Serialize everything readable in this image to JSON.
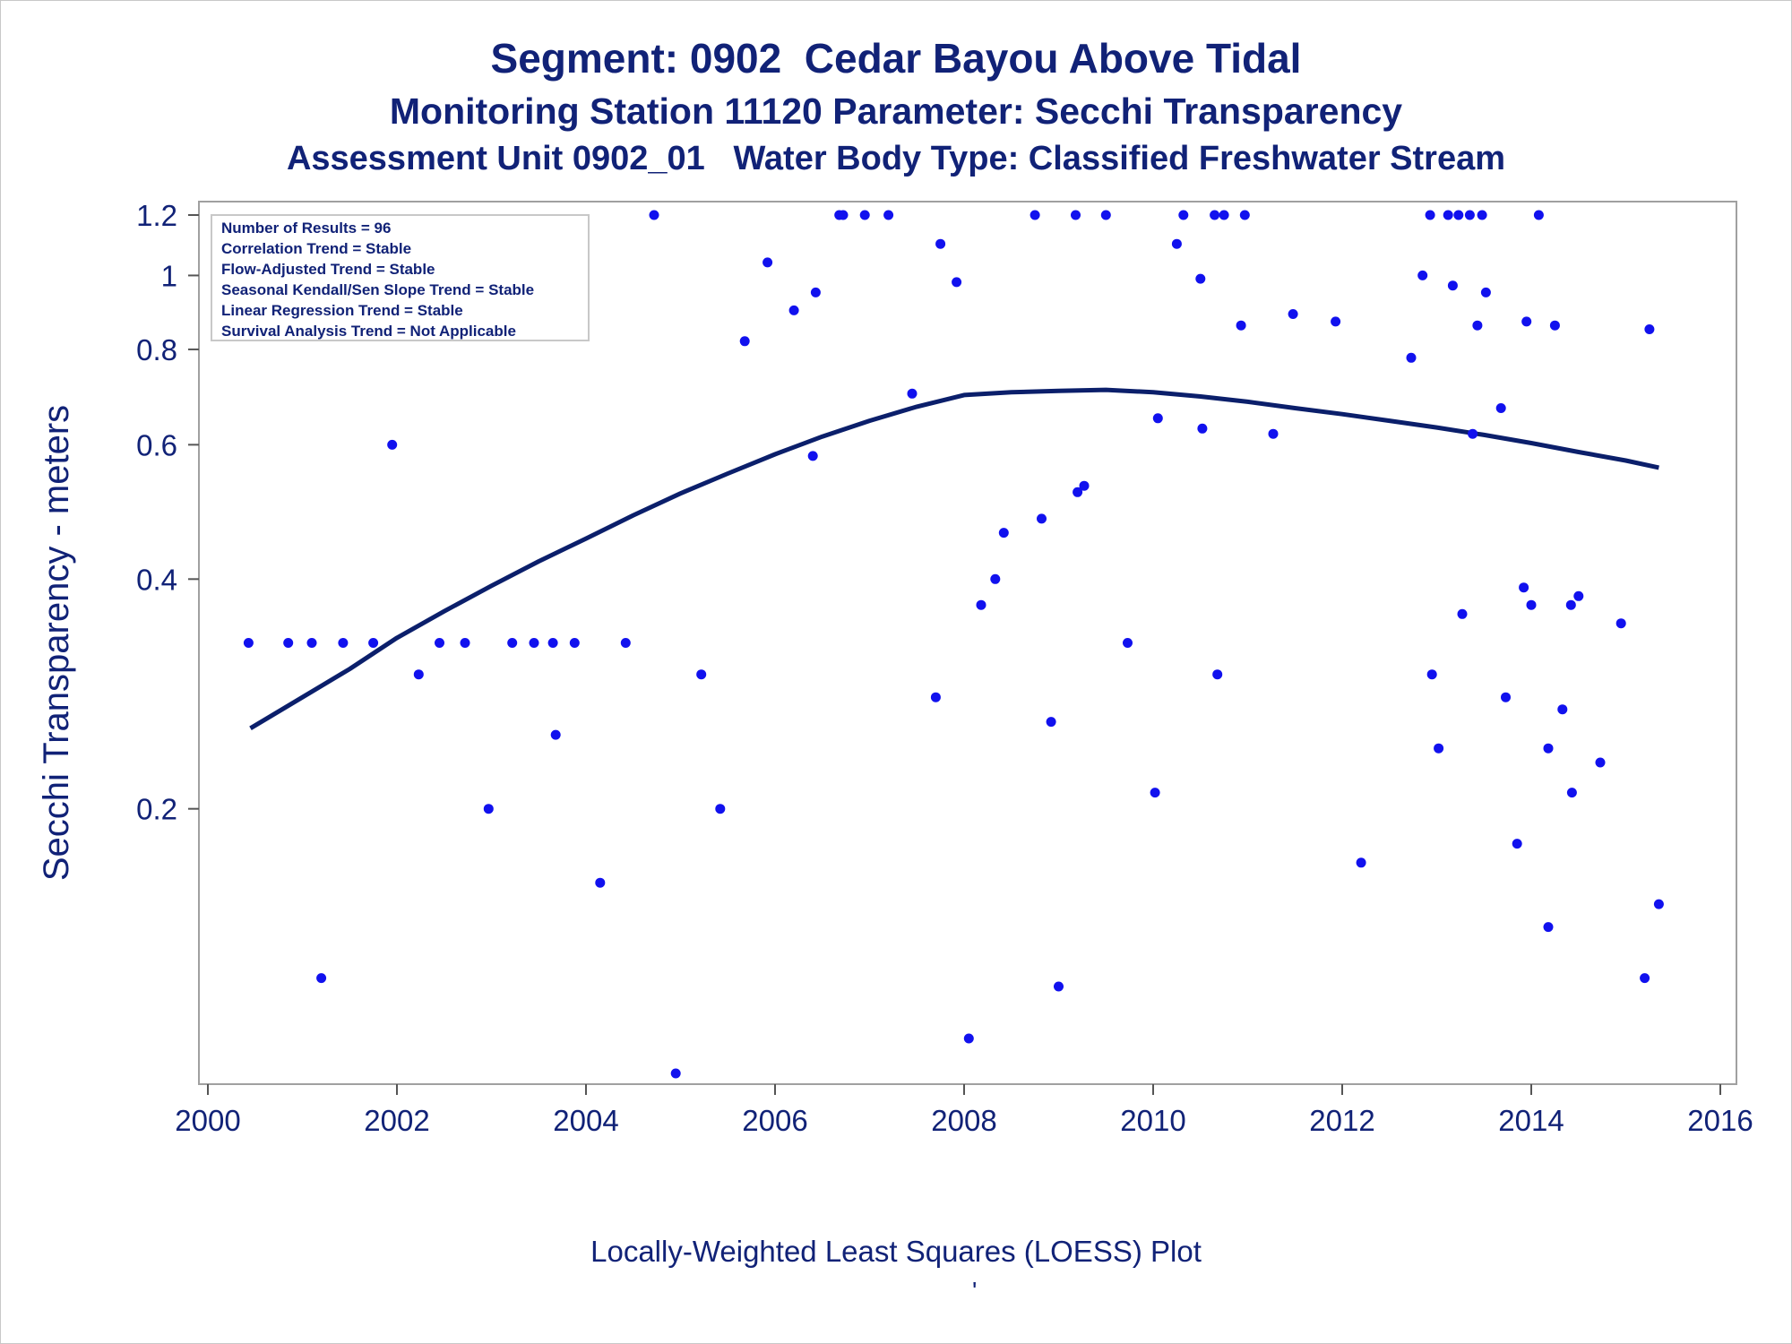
{
  "titles": {
    "line1": "Segment: 0902  Cedar Bayou Above Tidal",
    "line2": "Monitoring Station 11120 Parameter: Secchi Transparency",
    "line3": "Assessment Unit 0902_01   Water Body Type: Classified Freshwater Stream"
  },
  "footnote": "Locally-Weighted Least Squares (LOESS) Plot",
  "footnote_mark": "'",
  "colors": {
    "text": "#112277",
    "points": "#1111ee",
    "curve": "#0b1f6b",
    "frame": "#a0a0a0"
  },
  "chart_data": {
    "type": "scatter",
    "ylabel": "Secchi Transparency - meters",
    "xlabel": "",
    "x_ticks": [
      "2000",
      "2002",
      "2004",
      "2006",
      "2008",
      "2010",
      "2012",
      "2014",
      "2016"
    ],
    "y_ticks": [
      "0.2",
      "0.4",
      "0.6",
      "0.8",
      "1",
      "1.2"
    ],
    "xlim": [
      2000,
      2016
    ],
    "ylim": [
      0.09,
      1.2
    ],
    "y_scale": "log",
    "grid": false,
    "legend_placement": "top-left",
    "stats_box": [
      "Number of Results = 96",
      "Correlation Trend = Stable",
      "Flow-Adjusted Trend = Stable",
      "Seasonal Kendall/Sen Slope Trend = Stable",
      "Linear Regression Trend = Stable",
      "Survival Analysis Trend = Not Applicable"
    ],
    "points": [
      [
        2000.43,
        0.33
      ],
      [
        2000.85,
        0.33
      ],
      [
        2001.1,
        0.33
      ],
      [
        2001.2,
        0.12
      ],
      [
        2001.43,
        0.33
      ],
      [
        2001.75,
        0.33
      ],
      [
        2001.95,
        0.6
      ],
      [
        2002.23,
        0.3
      ],
      [
        2002.45,
        0.33
      ],
      [
        2002.72,
        0.33
      ],
      [
        2002.97,
        0.2
      ],
      [
        2003.22,
        0.33
      ],
      [
        2003.45,
        0.33
      ],
      [
        2003.65,
        0.33
      ],
      [
        2003.68,
        0.25
      ],
      [
        2003.88,
        0.33
      ],
      [
        2004.15,
        0.16
      ],
      [
        2004.42,
        0.33
      ],
      [
        2004.72,
        1.2
      ],
      [
        2004.95,
        0.09
      ],
      [
        2005.22,
        0.3
      ],
      [
        2005.42,
        0.2
      ],
      [
        2005.68,
        0.82
      ],
      [
        2005.92,
        1.04
      ],
      [
        2006.2,
        0.9
      ],
      [
        2006.4,
        0.58
      ],
      [
        2006.43,
        0.95
      ],
      [
        2006.68,
        1.2
      ],
      [
        2006.72,
        1.2
      ],
      [
        2006.95,
        1.2
      ],
      [
        2007.2,
        1.2
      ],
      [
        2007.45,
        0.7
      ],
      [
        2007.7,
        0.28
      ],
      [
        2007.75,
        1.1
      ],
      [
        2007.92,
        0.98
      ],
      [
        2008.05,
        0.1
      ],
      [
        2008.18,
        0.37
      ],
      [
        2008.33,
        0.4
      ],
      [
        2008.42,
        0.46
      ],
      [
        2008.75,
        1.2
      ],
      [
        2008.82,
        0.48
      ],
      [
        2008.92,
        0.26
      ],
      [
        2009.0,
        0.117
      ],
      [
        2009.18,
        1.2
      ],
      [
        2009.2,
        0.52
      ],
      [
        2009.27,
        0.53
      ],
      [
        2009.5,
        1.2
      ],
      [
        2009.73,
        0.33
      ],
      [
        2010.02,
        0.21
      ],
      [
        2010.05,
        0.65
      ],
      [
        2010.25,
        1.1
      ],
      [
        2010.32,
        1.2
      ],
      [
        2010.5,
        0.99
      ],
      [
        2010.52,
        0.63
      ],
      [
        2010.65,
        1.2
      ],
      [
        2010.68,
        0.3
      ],
      [
        2010.75,
        1.2
      ],
      [
        2010.93,
        0.86
      ],
      [
        2010.97,
        1.2
      ],
      [
        2011.27,
        0.62
      ],
      [
        2011.48,
        0.89
      ],
      [
        2011.93,
        0.87
      ],
      [
        2012.2,
        0.17
      ],
      [
        2012.73,
        0.78
      ],
      [
        2012.85,
        1.0
      ],
      [
        2012.93,
        1.2
      ],
      [
        2012.95,
        0.3
      ],
      [
        2013.02,
        0.24
      ],
      [
        2013.12,
        1.2
      ],
      [
        2013.17,
        0.97
      ],
      [
        2013.23,
        1.2
      ],
      [
        2013.27,
        0.36
      ],
      [
        2013.35,
        1.2
      ],
      [
        2013.38,
        0.62
      ],
      [
        2013.43,
        0.86
      ],
      [
        2013.48,
        1.2
      ],
      [
        2013.52,
        0.95
      ],
      [
        2013.68,
        0.67
      ],
      [
        2013.73,
        0.28
      ],
      [
        2013.85,
        0.18
      ],
      [
        2013.92,
        0.39
      ],
      [
        2013.95,
        0.87
      ],
      [
        2014.0,
        0.37
      ],
      [
        2014.08,
        1.2
      ],
      [
        2014.18,
        0.24
      ],
      [
        2014.18,
        0.14
      ],
      [
        2014.25,
        0.86
      ],
      [
        2014.33,
        0.27
      ],
      [
        2014.42,
        0.37
      ],
      [
        2014.43,
        0.21
      ],
      [
        2014.5,
        0.38
      ],
      [
        2014.73,
        0.23
      ],
      [
        2014.95,
        0.35
      ],
      [
        2015.2,
        0.12
      ],
      [
        2015.25,
        0.85
      ],
      [
        2015.35,
        0.15
      ]
    ],
    "series": [
      {
        "values": [
          [
            2000.45,
            0.255
          ],
          [
            2001.0,
            0.28
          ],
          [
            2001.5,
            0.305
          ],
          [
            2002.0,
            0.335
          ],
          [
            2002.5,
            0.363
          ],
          [
            2003.0,
            0.392
          ],
          [
            2003.5,
            0.422
          ],
          [
            2004.0,
            0.452
          ],
          [
            2004.5,
            0.485
          ],
          [
            2005.0,
            0.518
          ],
          [
            2005.5,
            0.55
          ],
          [
            2006.0,
            0.583
          ],
          [
            2006.5,
            0.615
          ],
          [
            2007.0,
            0.645
          ],
          [
            2007.5,
            0.673
          ],
          [
            2008.0,
            0.697
          ],
          [
            2008.5,
            0.703
          ],
          [
            2009.0,
            0.706
          ],
          [
            2009.5,
            0.708
          ],
          [
            2010.0,
            0.703
          ],
          [
            2010.5,
            0.694
          ],
          [
            2011.0,
            0.683
          ],
          [
            2011.5,
            0.67
          ],
          [
            2012.0,
            0.658
          ],
          [
            2012.5,
            0.645
          ],
          [
            2013.0,
            0.632
          ],
          [
            2013.5,
            0.618
          ],
          [
            2014.0,
            0.603
          ],
          [
            2014.5,
            0.587
          ],
          [
            2015.0,
            0.572
          ],
          [
            2015.35,
            0.56
          ]
        ]
      }
    ]
  }
}
